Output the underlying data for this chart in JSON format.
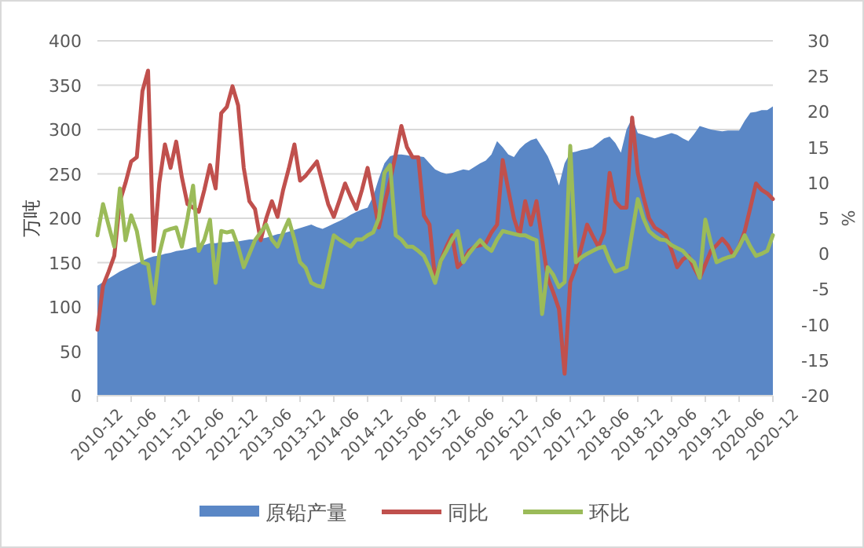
{
  "chart_data": {
    "type": "area",
    "categories": [
      "2010-12",
      null,
      null,
      null,
      null,
      null,
      "2011-06",
      null,
      null,
      null,
      null,
      null,
      "2011-12",
      null,
      null,
      null,
      null,
      null,
      "2012-06",
      null,
      null,
      null,
      null,
      null,
      "2012-12",
      null,
      null,
      null,
      null,
      null,
      "2013-06",
      null,
      null,
      null,
      null,
      null,
      "2013-12",
      null,
      null,
      null,
      null,
      null,
      "2014-06",
      null,
      null,
      null,
      null,
      null,
      "2014-12",
      null,
      null,
      null,
      null,
      null,
      "2015-06",
      null,
      null,
      null,
      null,
      null,
      "2015-12",
      null,
      null,
      null,
      null,
      null,
      "2016-06",
      null,
      null,
      null,
      null,
      null,
      "2016-12",
      null,
      null,
      null,
      null,
      null,
      "2017-06",
      null,
      null,
      null,
      null,
      null,
      "2017-12",
      null,
      null,
      null,
      null,
      null,
      "2018-06",
      null,
      null,
      null,
      null,
      null,
      "2018-12",
      null,
      null,
      null,
      null,
      null,
      "2019-06",
      null,
      null,
      null,
      null,
      null,
      "2019-12",
      null,
      null,
      null,
      null,
      null,
      "2020-06",
      null,
      null,
      null,
      null,
      null,
      "2020-12"
    ],
    "ylabel": "万吨",
    "y2label": "%",
    "ylim": [
      0,
      400
    ],
    "yticks": [
      0,
      50,
      100,
      150,
      200,
      250,
      300,
      350,
      400
    ],
    "y2lim": [
      -20,
      30
    ],
    "y2ticks": [
      -20,
      -15,
      -10,
      -5,
      0,
      5,
      10,
      15,
      20,
      25,
      30
    ],
    "grid": "y",
    "legend": "bottom",
    "series": [
      {
        "name": "原铅产量",
        "color": "#5a87c6",
        "values": [
          124,
          128,
          132,
          136,
          140,
          143,
          146,
          149,
          152,
          155,
          157,
          158,
          160,
          161,
          163,
          164,
          165,
          167,
          168,
          170,
          172,
          172,
          173,
          173,
          174,
          174,
          175,
          176,
          176,
          177,
          178,
          180,
          182,
          183,
          185,
          187,
          189,
          191,
          193,
          190,
          188,
          191,
          194,
          197,
          200,
          204,
          207,
          210,
          212,
          225,
          245,
          262,
          270,
          272,
          272,
          271,
          270,
          270,
          269,
          262,
          255,
          252,
          250,
          251,
          253,
          255,
          254,
          258,
          262,
          265,
          272,
          287,
          280,
          272,
          269,
          278,
          284,
          288,
          290,
          280,
          270,
          255,
          237,
          262,
          274,
          275,
          277,
          278,
          280,
          285,
          290,
          292,
          285,
          274,
          300,
          313,
          296,
          294,
          292,
          290,
          292,
          294,
          296,
          294,
          290,
          287,
          295,
          304,
          302,
          300,
          299,
          298,
          299,
          299,
          299,
          310,
          319,
          320,
          322,
          322,
          326
        ]
      },
      {
        "name": "同比",
        "type": "line",
        "axis": "y2",
        "color": "#c0504d",
        "values": [
          -10.7,
          -4.5,
          -2.5,
          -0.3,
          7.4,
          10,
          13,
          13.6,
          22.9,
          25.8,
          0.4,
          10,
          15.4,
          12.1,
          15.8,
          10.8,
          7,
          6.5,
          5.9,
          9,
          12.5,
          9.2,
          19.8,
          20.7,
          23.6,
          20.9,
          12.1,
          7.4,
          6.3,
          1.9,
          5,
          7.4,
          5.2,
          9,
          12,
          15.4,
          10.3,
          11,
          12,
          13,
          10,
          7,
          5.2,
          7.5,
          9.9,
          8,
          6.3,
          9,
          12.1,
          8,
          3.7,
          7,
          10.3,
          14,
          18,
          15,
          13.6,
          13.6,
          5.4,
          4.1,
          -3.6,
          -1,
          1,
          2.6,
          -1.9,
          -1,
          0.4,
          1,
          1.2,
          1.5,
          3,
          4.1,
          13.2,
          9,
          5,
          2.6,
          7.4,
          4.1,
          7.4,
          2,
          -3.4,
          -5.5,
          -7.8,
          -16.9,
          -4,
          -1.9,
          1,
          4.1,
          2.5,
          1,
          3,
          11.4,
          7.4,
          6.5,
          6.5,
          19.2,
          11.4,
          8,
          5,
          3.7,
          3.2,
          2.6,
          0.5,
          -1.9,
          -0.8,
          -0.3,
          -2,
          -3.4,
          -1.5,
          0.4,
          1.2,
          2.1,
          1.2,
          -0.3,
          1,
          3.2,
          6.5,
          9.9,
          9,
          8.5,
          7.7
        ]
      },
      {
        "name": "环比",
        "type": "line",
        "axis": "y2",
        "color": "#9bbb59",
        "values": [
          2.6,
          7,
          4,
          1,
          9.2,
          1.9,
          5.4,
          3.2,
          -1.2,
          -1.5,
          -7,
          0,
          3.2,
          3.5,
          3.7,
          1,
          5,
          9.6,
          0.4,
          2,
          4.8,
          -4.1,
          3.2,
          3,
          3.2,
          1,
          -1.9,
          0,
          1.9,
          3,
          4.1,
          2,
          1,
          3,
          4.8,
          2,
          -1.2,
          -2,
          -4.1,
          -4.5,
          -4.7,
          -1,
          2.6,
          2,
          1.5,
          1,
          2,
          2,
          2.6,
          3,
          5,
          11.4,
          12.5,
          2.6,
          2,
          1,
          1,
          0.4,
          -0.3,
          -2,
          -4.1,
          -1,
          0.4,
          2,
          3.2,
          -1.2,
          0,
          1,
          1.9,
          1,
          0.4,
          2,
          3.2,
          3,
          2.8,
          2.6,
          2.6,
          2.2,
          1.9,
          -8.5,
          -1.9,
          -3,
          -4.7,
          -4,
          15.2,
          -1.2,
          -0.5,
          0,
          0.4,
          0.8,
          1,
          -1,
          -2.5,
          -2.2,
          -1.9,
          3,
          7.7,
          5,
          3.2,
          2.5,
          2,
          1.9,
          1.2,
          0.8,
          0.4,
          -0.5,
          -1.2,
          -3.4,
          4.8,
          1.5,
          -1.2,
          -0.8,
          -0.5,
          -0.3,
          1,
          2.6,
          1,
          -0.3,
          0,
          0.4,
          2.6
        ]
      }
    ]
  }
}
